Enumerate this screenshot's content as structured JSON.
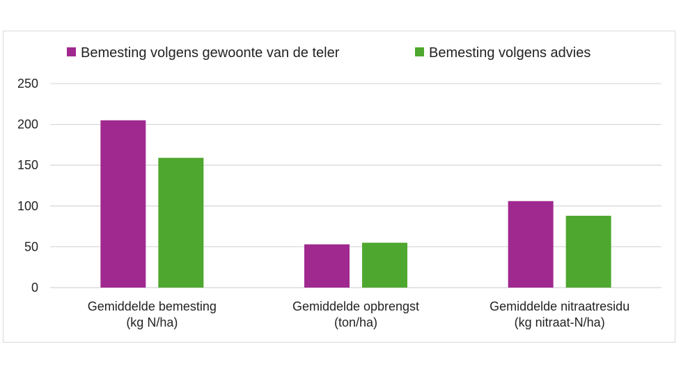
{
  "chart_data": {
    "type": "bar",
    "title": "",
    "xlabel": "",
    "ylabel": "",
    "categories": [
      [
        "Gemiddelde bemesting",
        "(kg N/ha)"
      ],
      [
        "Gemiddelde opbrengst",
        "(ton/ha)"
      ],
      [
        "Gemiddelde nitraatresidu",
        "(kg nitraat-N/ha)"
      ]
    ],
    "series": [
      {
        "name": "Bemesting volgens gewoonte van de teler",
        "color": "#a0298f",
        "values": [
          205,
          53,
          106
        ]
      },
      {
        "name": "Bemesting volgens advies",
        "color": "#4ea72e",
        "values": [
          159,
          55,
          88
        ]
      }
    ],
    "ylim": [
      0,
      250
    ],
    "yticks": [
      0,
      50,
      100,
      150,
      200,
      250
    ],
    "grid": true,
    "legend": "top"
  }
}
